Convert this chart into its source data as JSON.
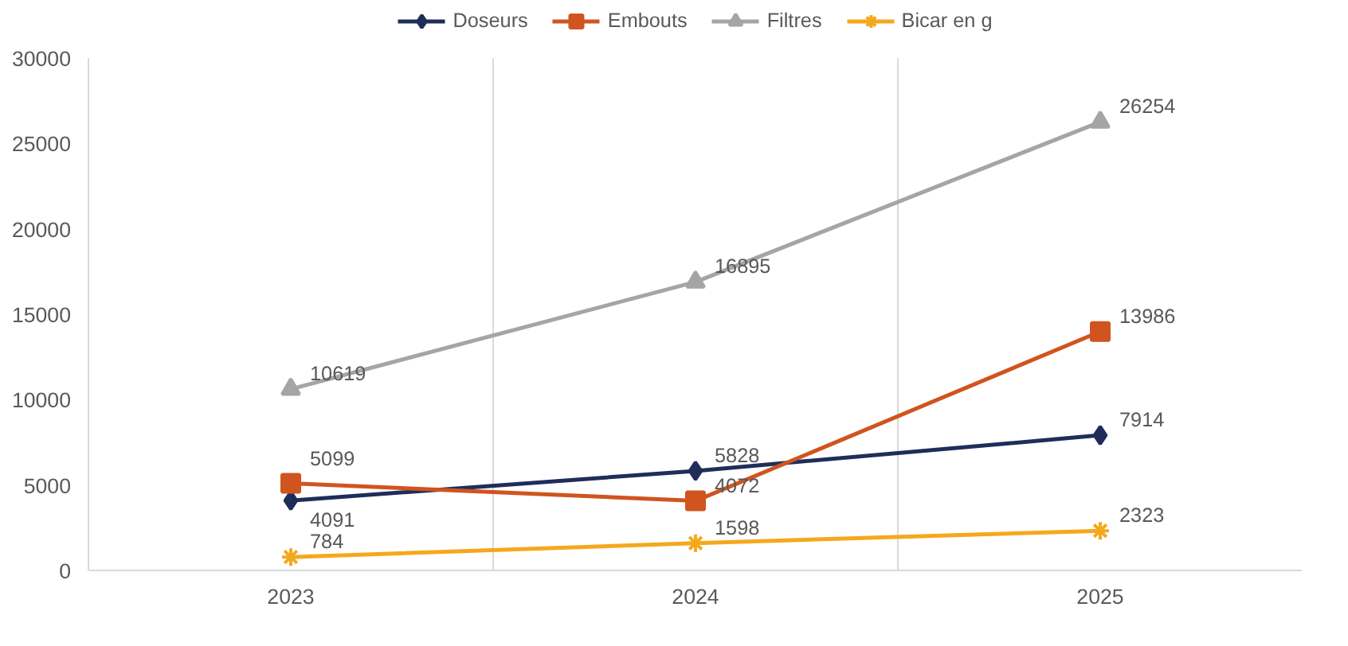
{
  "chart_data": {
    "type": "line",
    "categories": [
      "2023",
      "2024",
      "2025"
    ],
    "series": [
      {
        "name": "Doseurs",
        "color": "#1f2d5a",
        "marker": "diamond",
        "values": [
          4091,
          5828,
          7914
        ]
      },
      {
        "name": "Embouts",
        "color": "#d0541f",
        "marker": "square",
        "values": [
          5099,
          4072,
          13986
        ]
      },
      {
        "name": "Filtres",
        "color": "#a5a5a5",
        "marker": "triangle",
        "values": [
          10619,
          16895,
          26254
        ]
      },
      {
        "name": "Bicar en g",
        "color": "#f4a81d",
        "marker": "cross",
        "values": [
          784,
          1598,
          2323
        ]
      }
    ],
    "ylim": [
      0,
      30000
    ],
    "yticks": [
      0,
      5000,
      10000,
      15000,
      20000,
      25000,
      30000
    ],
    "grid": "x",
    "legend": "top",
    "data_labels": true,
    "line_style": "solid"
  }
}
